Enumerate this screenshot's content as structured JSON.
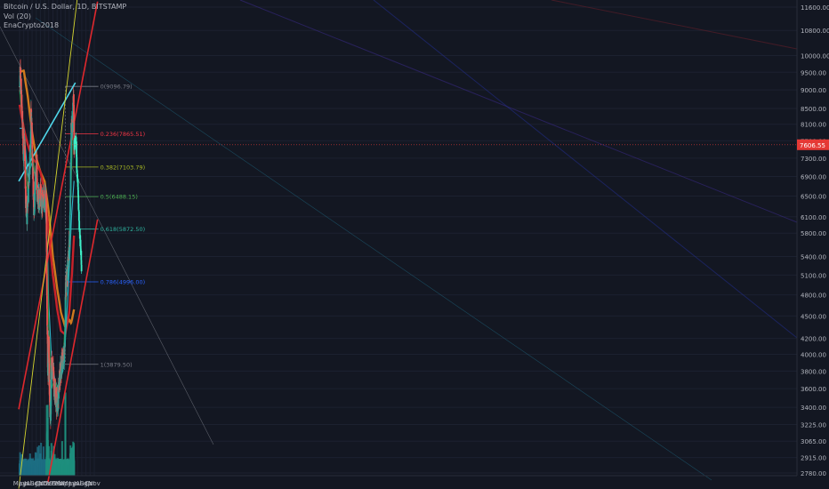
{
  "legend": {
    "symbol": "Bitcoin / U.S. Dollar, 1D, BITSTAMP",
    "volume": "Vol (20)",
    "author": "EnaCrypto2018"
  },
  "price_tag": "7606.55",
  "colors": {
    "background": "#131722",
    "candle_up": "#26a69a",
    "candle_down": "#ef5350",
    "ma_orange": "#d07a1e",
    "ma_red": "#c8222a",
    "ma_cyan": "#2fb4c8",
    "ma_green": "#2f8a3a",
    "trend_cyan": "#4fd7ea",
    "trend_red": "#e0282d",
    "trend_yellow": "#d6d62e",
    "price_tag_bg": "#e53935"
  },
  "chart_data": {
    "type": "candlestick",
    "title": "Bitcoin / U.S. Dollar, 1D, BITSTAMP",
    "x_tick_labels": [
      "May",
      "Jun",
      "Jul",
      "Aug",
      "Sep",
      "Oct",
      "Nov",
      "Dec",
      "2019",
      "Feb",
      "Mar",
      "Apr",
      "May",
      "Jun",
      "Jul",
      "Aug",
      "Sep",
      "Oct",
      "Nov"
    ],
    "y_axis": {
      "scale": "log",
      "range": [
        2780,
        11600
      ],
      "tick_labels": [
        "11600.00",
        "10800.00",
        "10000.00",
        "9500.00",
        "9000.00",
        "8500.00",
        "8100.00",
        "7700.00",
        "7300.00",
        "6900.00",
        "6500.00",
        "6100.00",
        "5800.00",
        "5400.00",
        "5100.00",
        "4800.00",
        "4500.00",
        "4200.00",
        "4000.00",
        "3800.00",
        "3600.00",
        "3400.00",
        "3225.00",
        "3065.00",
        "2915.00",
        "2780.00"
      ]
    },
    "price_path_close": [
      [
        "2018-05-01",
        9100
      ],
      [
        "2018-05-06",
        9700
      ],
      [
        "2018-05-10",
        9250
      ],
      [
        "2018-05-20",
        8300
      ],
      [
        "2018-05-30",
        7450
      ],
      [
        "2018-06-08",
        7600
      ],
      [
        "2018-06-15",
        6500
      ],
      [
        "2018-06-24",
        6100
      ],
      [
        "2018-07-05",
        6600
      ],
      [
        "2018-07-17",
        7300
      ],
      [
        "2018-07-24",
        8300
      ],
      [
        "2018-07-30",
        8000
      ],
      [
        "2018-08-06",
        7000
      ],
      [
        "2018-08-14",
        6200
      ],
      [
        "2018-08-25",
        6750
      ],
      [
        "2018-09-04",
        7400
      ],
      [
        "2018-09-08",
        6400
      ],
      [
        "2018-09-20",
        6450
      ],
      [
        "2018-10-01",
        6600
      ],
      [
        "2018-10-11",
        6300
      ],
      [
        "2018-10-25",
        6450
      ],
      [
        "2018-11-08",
        6450
      ],
      [
        "2018-11-13",
        6350
      ],
      [
        "2018-11-15",
        5600
      ],
      [
        "2018-11-20",
        4500
      ],
      [
        "2018-11-25",
        3800
      ],
      [
        "2018-12-01",
        4200
      ],
      [
        "2018-12-07",
        3500
      ],
      [
        "2018-12-15",
        3250
      ],
      [
        "2018-12-20",
        3900
      ],
      [
        "2018-12-25",
        3800
      ],
      [
        "2019-01-01",
        3850
      ],
      [
        "2019-01-10",
        3600
      ],
      [
        "2019-01-20",
        3550
      ],
      [
        "2019-01-28",
        3450
      ],
      [
        "2019-02-07",
        3450
      ],
      [
        "2019-02-15",
        3650
      ],
      [
        "2019-02-25",
        3800
      ],
      [
        "2019-03-10",
        3900
      ],
      [
        "2019-03-25",
        4000
      ],
      [
        "2019-04-01",
        4150
      ],
      [
        "2019-04-03",
        4900
      ],
      [
        "2019-04-15",
        5100
      ],
      [
        "2019-04-25",
        5300
      ],
      [
        "2019-05-05",
        5800
      ],
      [
        "2019-05-12",
        7000
      ],
      [
        "2019-05-16",
        7900
      ],
      [
        "2019-05-20",
        8000
      ],
      [
        "2019-05-25",
        8050
      ],
      [
        "2019-05-30",
        8700
      ],
      [
        "2019-06-03",
        8800
      ],
      [
        "2019-06-06",
        7600
      ]
    ],
    "projection_path": [
      [
        "2019-06-07",
        7606
      ],
      [
        "2019-06-16",
        7750
      ],
      [
        "2019-06-22",
        7650
      ],
      [
        "2019-06-26",
        7000
      ],
      [
        "2019-07-02",
        6800
      ],
      [
        "2019-07-08",
        6400
      ],
      [
        "2019-07-13",
        6000
      ],
      [
        "2019-07-18",
        5800
      ],
      [
        "2019-07-24",
        5500
      ],
      [
        "2019-07-27",
        5400
      ],
      [
        "2019-07-30",
        5200
      ]
    ],
    "moving_averages": [
      {
        "color_key": "ma_orange",
        "points": [
          [
            "2018-05-01",
            9500
          ],
          [
            "2018-06-01",
            9550
          ],
          [
            "2018-07-01",
            8800
          ],
          [
            "2018-08-01",
            7900
          ],
          [
            "2018-09-01",
            7300
          ],
          [
            "2018-10-01",
            7000
          ],
          [
            "2018-11-01",
            6800
          ],
          [
            "2018-12-01",
            6200
          ],
          [
            "2019-01-01",
            5400
          ],
          [
            "2019-02-01",
            4900
          ],
          [
            "2019-03-01",
            4550
          ],
          [
            "2019-04-01",
            4350
          ],
          [
            "2019-05-01",
            4450
          ],
          [
            "2019-05-15",
            4400
          ],
          [
            "2019-06-06",
            4600
          ]
        ]
      },
      {
        "color_key": "ma_red",
        "points": [
          [
            "2018-05-01",
            8600
          ],
          [
            "2018-06-01",
            8000
          ],
          [
            "2018-07-01",
            7600
          ],
          [
            "2018-08-01",
            7300
          ],
          [
            "2018-09-01",
            7200
          ],
          [
            "2018-10-01",
            7000
          ],
          [
            "2018-11-01",
            6600
          ],
          [
            "2018-12-01",
            5800
          ],
          [
            "2019-01-01",
            5100
          ],
          [
            "2019-02-01",
            4600
          ],
          [
            "2019-03-01",
            4300
          ],
          [
            "2019-04-01",
            4250
          ],
          [
            "2019-05-01",
            4550
          ],
          [
            "2019-05-20",
            5100
          ],
          [
            "2019-06-06",
            5800
          ]
        ]
      },
      {
        "color_key": "ma_cyan",
        "points": [
          [
            "2018-05-01",
            8000
          ],
          [
            "2018-06-01",
            8000
          ],
          [
            "2018-07-01",
            6900
          ],
          [
            "2018-08-01",
            7200
          ],
          [
            "2018-09-01",
            6800
          ],
          [
            "2018-10-01",
            6550
          ],
          [
            "2018-11-01",
            6450
          ],
          [
            "2018-11-20",
            5700
          ],
          [
            "2018-12-01",
            4700
          ],
          [
            "2018-12-20",
            4000
          ],
          [
            "2019-01-15",
            3700
          ],
          [
            "2019-02-10",
            3600
          ],
          [
            "2019-03-15",
            3800
          ],
          [
            "2019-04-10",
            4400
          ],
          [
            "2019-05-01",
            5200
          ],
          [
            "2019-05-20",
            6200
          ],
          [
            "2019-06-06",
            6850
          ]
        ]
      },
      {
        "color_key": "ma_green",
        "points": [
          [
            "2018-05-01",
            9000
          ],
          [
            "2018-06-01",
            7900
          ],
          [
            "2018-07-01",
            6500
          ],
          [
            "2018-08-01",
            7500
          ],
          [
            "2018-09-01",
            6700
          ],
          [
            "2018-10-01",
            6500
          ],
          [
            "2018-11-13",
            6400
          ],
          [
            "2018-12-01",
            4400
          ],
          [
            "2018-12-20",
            3600
          ],
          [
            "2019-01-15",
            3700
          ],
          [
            "2019-02-15",
            3550
          ],
          [
            "2019-03-15",
            3850
          ],
          [
            "2019-04-10",
            4800
          ],
          [
            "2019-05-10",
            6200
          ],
          [
            "2019-05-25",
            7900
          ],
          [
            "2019-06-06",
            8400
          ]
        ]
      }
    ],
    "fib_levels": [
      {
        "ratio": "0",
        "price": 9096.79,
        "label": "0(9096.79)",
        "color": "#787b86"
      },
      {
        "ratio": "0.236",
        "price": 7865.51,
        "label": "0.236(7865.51)",
        "color": "#f23645"
      },
      {
        "ratio": "0.382",
        "price": 7103.79,
        "label": "0.382(7103.79)",
        "color": "#a7b723"
      },
      {
        "ratio": "0.5",
        "price": 6488.15,
        "label": "0.5(6488.15)",
        "color": "#4caf50"
      },
      {
        "ratio": "0.618",
        "price": 5872.5,
        "label": "0.618(5872.50)",
        "color": "#2fb4a0"
      },
      {
        "ratio": "0.786",
        "price": 4996.0,
        "label": "0.786(4996.00)",
        "color": "#2962ff"
      },
      {
        "ratio": "1",
        "price": 3879.5,
        "label": "1(3879.50)",
        "color": "#787b86"
      }
    ],
    "fib_range": [
      "2019-04-02",
      "2019-12-01"
    ],
    "trendlines": [
      {
        "color_key": "trend_cyan",
        "from": [
          "2018-04-25",
          6800
        ],
        "to": [
          "2019-06-15",
          9200
        ]
      },
      {
        "color_key": "trend_red",
        "from": [
          "2018-04-25",
          3380
        ],
        "to": [
          "2019-11-25",
          11800
        ]
      },
      {
        "color_key": "trend_red",
        "from": [
          "2018-11-25",
          2700
        ],
        "to": [
          "2019-11-25",
          6050
        ]
      },
      {
        "color_key": "trend_yellow",
        "from": [
          "2018-04-25",
          2650
        ],
        "to": [
          "2019-07-15",
          12600
        ]
      }
    ],
    "volume_range": [
      0,
      1
    ]
  }
}
